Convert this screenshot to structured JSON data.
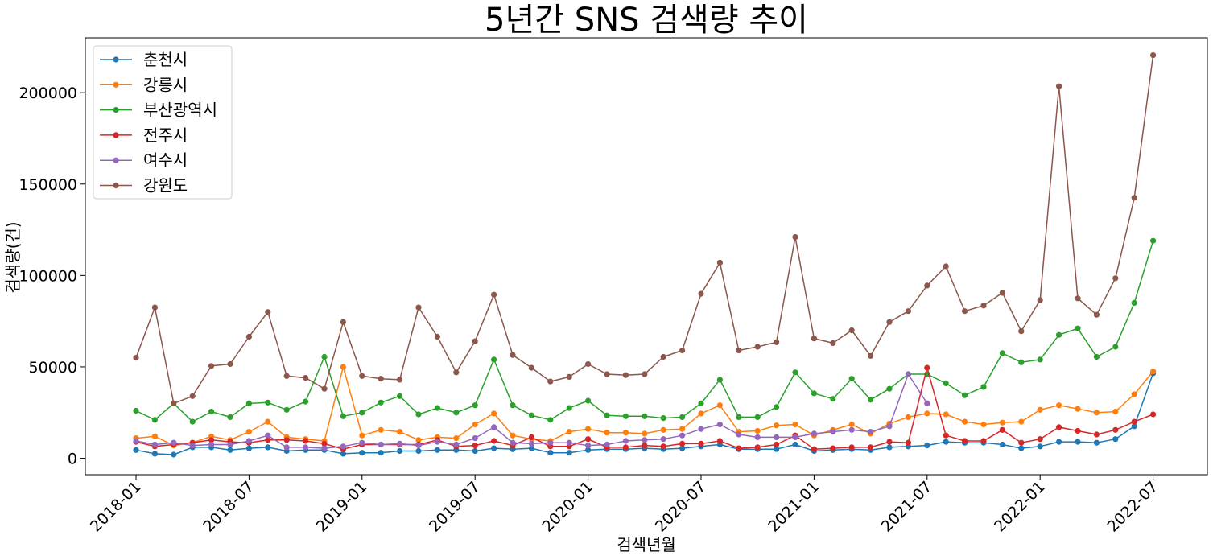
{
  "chart_data": {
    "type": "line",
    "title": "5년간 SNS 검색량 추이",
    "xlabel": "검색년월",
    "ylabel": "검색량(건)",
    "x_start": "2018-01",
    "xticks": [
      "2018-01",
      "2018-07",
      "2019-01",
      "2019-07",
      "2020-01",
      "2020-07",
      "2021-01",
      "2021-07",
      "2022-01",
      "2022-07"
    ],
    "yticks": [
      0,
      50000,
      100000,
      150000,
      200000
    ],
    "ylim": [
      -9000,
      230000
    ],
    "grid": false,
    "legend_position": "upper-left",
    "marker": "circle",
    "series": [
      {
        "name": "춘천시",
        "color": "#1f77b4",
        "values": [
          4500,
          2500,
          2000,
          6000,
          6000,
          4500,
          5500,
          6000,
          4000,
          4500,
          4500,
          2500,
          3000,
          3000,
          4000,
          4000,
          4500,
          4500,
          4000,
          5500,
          5000,
          5500,
          3000,
          3000,
          4500,
          5000,
          5000,
          5500,
          5000,
          5500,
          6500,
          7500,
          5000,
          5000,
          5000,
          7500,
          4000,
          4500,
          5000,
          4500,
          6000,
          6500,
          7000,
          9000,
          8500,
          8500,
          7500,
          5500,
          6500,
          9000,
          9000,
          8500,
          10500,
          17500,
          46500
        ]
      },
      {
        "name": "강릉시",
        "color": "#ff7f0e",
        "values": [
          11000,
          12000,
          7000,
          8500,
          12000,
          10000,
          14500,
          20000,
          11500,
          10500,
          9500,
          50000,
          12500,
          15500,
          14500,
          10000,
          11500,
          11000,
          18500,
          24500,
          12500,
          10500,
          9500,
          14500,
          16000,
          14000,
          14000,
          13500,
          15500,
          16000,
          24500,
          29000,
          14500,
          15000,
          18000,
          18500,
          12500,
          15500,
          18500,
          13500,
          19000,
          22500,
          24500,
          24000,
          20000,
          18500,
          19500,
          20000,
          26500,
          29000,
          27000,
          25000,
          25500,
          35000,
          47500
        ]
      },
      {
        "name": "부산광역시",
        "color": "#2ca02c",
        "values": [
          26000,
          21000,
          30000,
          20000,
          25500,
          22500,
          30000,
          30500,
          26500,
          31000,
          55500,
          23000,
          25000,
          30500,
          34000,
          24000,
          27500,
          25000,
          29000,
          54000,
          29000,
          23500,
          21000,
          27500,
          31500,
          23500,
          23000,
          23000,
          22000,
          22500,
          30000,
          43000,
          22500,
          22500,
          28000,
          47000,
          35500,
          32500,
          43500,
          32000,
          38000,
          46000,
          46000,
          41000,
          34500,
          39000,
          57500,
          52500,
          54000,
          67500,
          71000,
          55500,
          61000,
          85000,
          119000
        ]
      },
      {
        "name": "전주시",
        "color": "#d62728",
        "values": [
          9000,
          6500,
          7500,
          8500,
          10000,
          9000,
          8500,
          10000,
          10000,
          9500,
          8000,
          5000,
          7500,
          7500,
          7500,
          7500,
          10000,
          6500,
          7000,
          9500,
          7000,
          11500,
          6500,
          6500,
          10500,
          6000,
          6000,
          7000,
          6500,
          8000,
          8000,
          9500,
          5500,
          6000,
          7500,
          12500,
          5000,
          5500,
          6000,
          6000,
          9000,
          8500,
          49500,
          12500,
          9500,
          9500,
          15500,
          8500,
          10500,
          17000,
          15000,
          13000,
          15500,
          20000,
          24000
        ]
      },
      {
        "name": "여수시",
        "color": "#9467bd",
        "values": [
          9500,
          7500,
          8500,
          7000,
          7500,
          7500,
          9500,
          12500,
          6000,
          6000,
          5500,
          6500,
          8500,
          7500,
          8000,
          7000,
          9000,
          7500,
          11000,
          17000,
          8500,
          8000,
          8500,
          8500,
          7000,
          7500,
          9500,
          10000,
          10500,
          12500,
          16000,
          18500,
          13000,
          11500,
          11500,
          11500,
          13500,
          14500,
          15500,
          14500,
          17500,
          46000,
          30000
        ]
      },
      {
        "name": "강원도",
        "color": "#8c564b",
        "values": [
          55000,
          82500,
          30000,
          34000,
          50500,
          51500,
          66500,
          80000,
          45000,
          44000,
          38000,
          74500,
          45000,
          43500,
          43000,
          82500,
          66500,
          47000,
          64000,
          89500,
          56500,
          49500,
          42000,
          44500,
          51500,
          46000,
          45500,
          46000,
          55500,
          59000,
          90000,
          107000,
          59000,
          61000,
          63500,
          121000,
          65500,
          63000,
          70000,
          56000,
          74500,
          80500,
          94500,
          105000,
          80500,
          83500,
          90500,
          69500,
          86500,
          203500,
          87500,
          78500,
          98500,
          142500,
          220500
        ]
      }
    ]
  }
}
